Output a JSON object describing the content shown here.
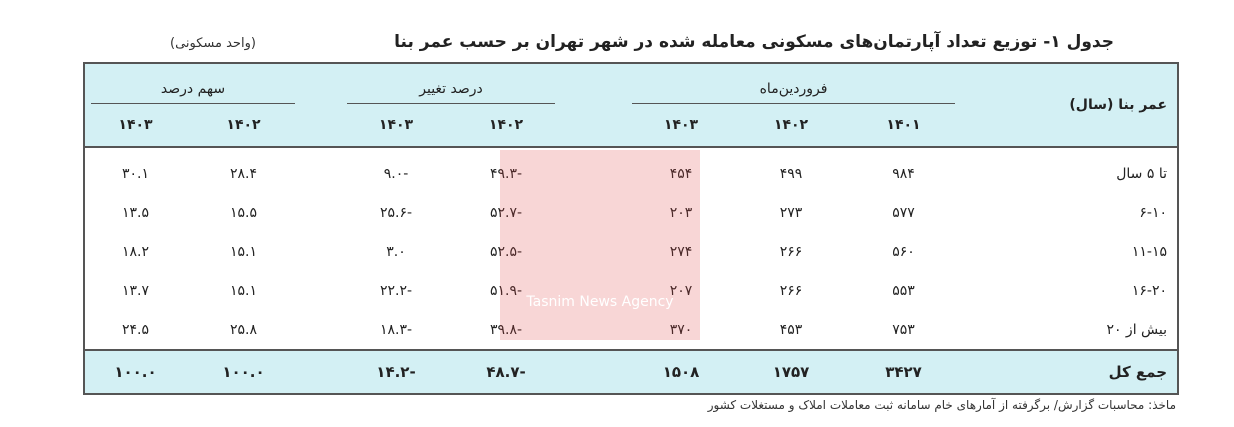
{
  "title": "جدول ۱- توزیع تعداد آپارتمان‌های مسکونی معامله شده در شهر تهران بر حسب عمر بنا",
  "unit": "(واحد مسکونی)",
  "headers": {
    "age": "عمر بنا (سال)",
    "farvardin": "فروردین‌ماه",
    "change": "درصد تغییر",
    "share": "سهم درصد",
    "farvardin_years": [
      "۱۴۰۱",
      "۱۴۰۲",
      "۱۴۰۳"
    ],
    "change_years": [
      "۱۴۰۲",
      "۱۴۰۳"
    ],
    "share_years": [
      "۱۴۰۲",
      "۱۴۰۳"
    ]
  },
  "rows": [
    {
      "age": "تا ۵ سال",
      "f1401": "۹۸۴",
      "f1402": "۴۹۹",
      "f1403": "۴۵۴",
      "c1402": "-۴۹.۳",
      "c1403": "-۹.۰",
      "s1402": "۲۸.۴",
      "s1403": "۳۰.۱"
    },
    {
      "age": "۶-۱۰",
      "f1401": "۵۷۷",
      "f1402": "۲۷۳",
      "f1403": "۲۰۳",
      "c1402": "-۵۲.۷",
      "c1403": "-۲۵.۶",
      "s1402": "۱۵.۵",
      "s1403": "۱۳.۵"
    },
    {
      "age": "۱۱-۱۵",
      "f1401": "۵۶۰",
      "f1402": "۲۶۶",
      "f1403": "۲۷۴",
      "c1402": "-۵۲.۵",
      "c1403": "۳.۰",
      "s1402": "۱۵.۱",
      "s1403": "۱۸.۲"
    },
    {
      "age": "۱۶-۲۰",
      "f1401": "۵۵۳",
      "f1402": "۲۶۶",
      "f1403": "۲۰۷",
      "c1402": "-۵۱.۹",
      "c1403": "-۲۲.۲",
      "s1402": "۱۵.۱",
      "s1403": "۱۳.۷"
    },
    {
      "age": "بیش از ۲۰",
      "f1401": "۷۵۳",
      "f1402": "۴۵۳",
      "f1403": "۳۷۰",
      "c1402": "-۳۹.۸",
      "c1403": "-۱۸.۳",
      "s1402": "۲۵.۸",
      "s1403": "۲۴.۵"
    }
  ],
  "total": {
    "age": "جمع کل",
    "f1401": "۳۴۲۷",
    "f1402": "۱۷۵۷",
    "f1403": "۱۵۰۸",
    "c1402": "-۴۸.۷",
    "c1403": "-۱۴.۲",
    "s1402": "۱۰۰.۰",
    "s1403": "۱۰۰.۰"
  },
  "watermark": "Tasnim News Agency",
  "source": "ماخذ: محاسبات گزارش/ برگرفته از آمارهای خام سامانه ثبت معاملات املاک و مستغلات کشور",
  "colors": {
    "header_bg": "#d3f0f4",
    "watermark": "#e14646"
  }
}
